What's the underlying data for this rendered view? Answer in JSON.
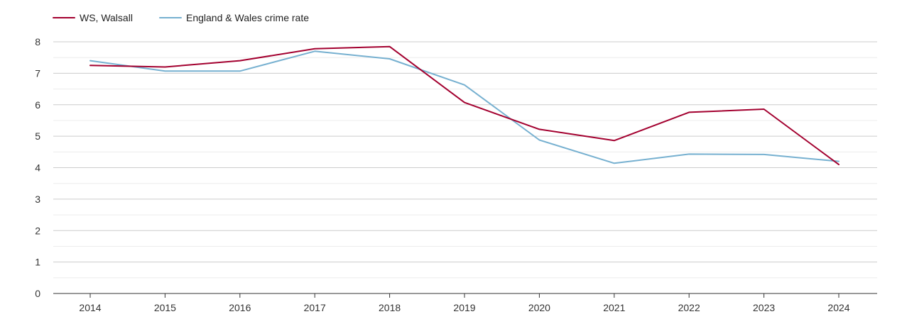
{
  "chart_data": {
    "type": "line",
    "title": "",
    "xlabel": "",
    "ylabel": "",
    "categories": [
      "2014",
      "2015",
      "2016",
      "2017",
      "2018",
      "2019",
      "2020",
      "2021",
      "2022",
      "2023",
      "2024"
    ],
    "ylim": [
      0,
      8
    ],
    "yticks": [
      "0",
      "1",
      "2",
      "3",
      "4",
      "5",
      "6",
      "7",
      "8"
    ],
    "grid": true,
    "legend_position": "top-left",
    "series": [
      {
        "name": "WS, Walsall",
        "color": "#a3002f",
        "values": [
          7.25,
          7.2,
          7.4,
          7.78,
          7.85,
          6.07,
          5.22,
          4.86,
          5.76,
          5.86,
          4.1
        ]
      },
      {
        "name": "England & Wales crime rate",
        "color": "#76b0d0",
        "values": [
          7.4,
          7.07,
          7.07,
          7.7,
          7.46,
          6.63,
          4.88,
          4.14,
          4.43,
          4.42,
          4.2
        ]
      }
    ]
  }
}
